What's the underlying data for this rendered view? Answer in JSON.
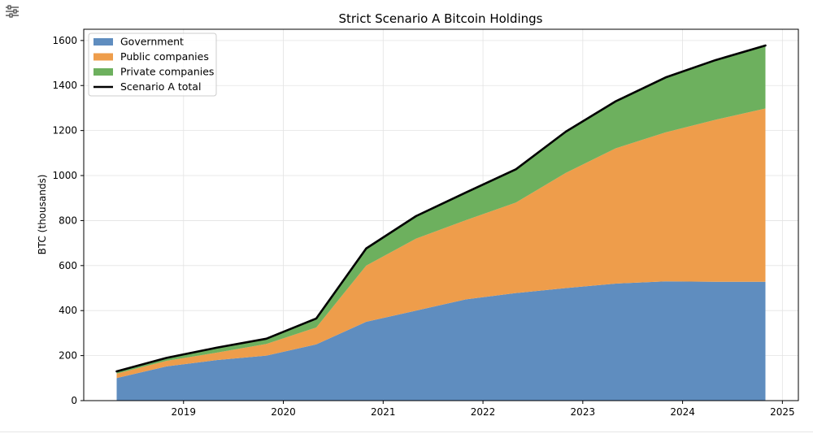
{
  "chart_data": {
    "type": "area",
    "title": "Strict Scenario A Bitcoin Holdings",
    "xlabel": "",
    "ylabel": "BTC (thousands)",
    "xlim": [
      2018.0,
      2025.16
    ],
    "ylim": [
      0,
      1650
    ],
    "x_ticks": [
      "2019",
      "2020",
      "2021",
      "2022",
      "2023",
      "2024",
      "2025"
    ],
    "y_ticks": [
      "0",
      "200",
      "400",
      "600",
      "800",
      "1000",
      "1200",
      "1400",
      "1600"
    ],
    "grid": true,
    "legend_position": "top-left",
    "x": [
      2018.33,
      2018.83,
      2019.33,
      2019.83,
      2020.33,
      2020.83,
      2021.33,
      2021.83,
      2022.33,
      2022.83,
      2023.33,
      2023.83,
      2024.33,
      2024.83
    ],
    "series": [
      {
        "name": "Government",
        "color": "#5f8dbf",
        "values": [
          100,
          152,
          180,
          200,
          250,
          350,
          400,
          450,
          478,
          500,
          520,
          530,
          528,
          528
        ]
      },
      {
        "name": "Public companies",
        "color": "#ee9d4b",
        "values": [
          20,
          25,
          33,
          52,
          75,
          250,
          320,
          352,
          402,
          512,
          601,
          662,
          720,
          770
        ]
      },
      {
        "name": "Private companies",
        "color": "#6db05e",
        "values": [
          10,
          13,
          22,
          23,
          40,
          76,
          100,
          123,
          148,
          183,
          209,
          244,
          265,
          280
        ]
      }
    ],
    "total": {
      "name": "Scenario A total",
      "color": "#000000",
      "values": [
        130,
        190,
        235,
        275,
        365,
        676,
        820,
        925,
        1028,
        1195,
        1330,
        1436,
        1513,
        1578
      ]
    }
  }
}
